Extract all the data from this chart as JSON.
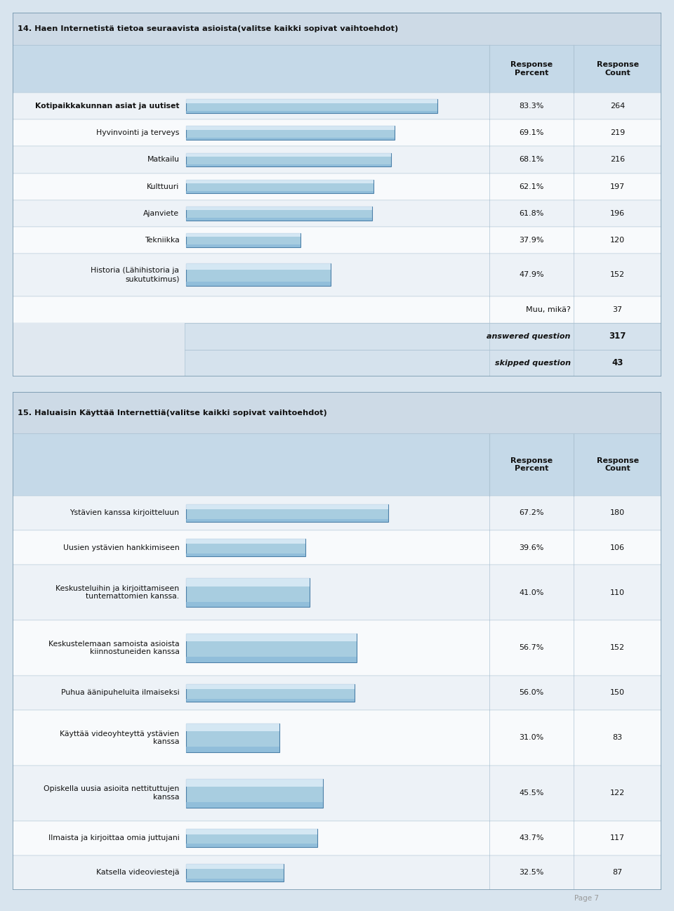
{
  "q14": {
    "title": "14. Haen Internetistä tietoa seuraavista asioista(valitse kaikki sopivat vaihtoehdot)",
    "categories": [
      "Kotipaikkakunnan asiat ja uutiset",
      "Hyvinvointi ja terveys",
      "Matkailu",
      "Kulttuuri",
      "Ajanviete",
      "Tekniikka",
      "Historia (Lähihistoria ja\nsukututkimus)"
    ],
    "bold_flags": [
      true,
      false,
      false,
      false,
      false,
      false,
      false
    ],
    "percents": [
      83.3,
      69.1,
      68.1,
      62.1,
      61.8,
      37.9,
      47.9
    ],
    "percent_labels": [
      "83.3%",
      "69.1%",
      "68.1%",
      "62.1%",
      "61.8%",
      "37.9%",
      "47.9%"
    ],
    "counts": [
      264,
      219,
      216,
      197,
      196,
      120,
      152
    ],
    "extra_row_label": "Muu, mikä?",
    "extra_row_count": 37,
    "answered_label": "answered question",
    "answered_count": 317,
    "skipped_label": "skipped question",
    "skipped_count": 43,
    "multi_line_row": [
      false,
      false,
      false,
      false,
      false,
      false,
      true
    ]
  },
  "q15": {
    "title": "15. Haluaisin Käyttää Internettiä(valitse kaikki sopivat vaihtoehdot)",
    "categories": [
      "Ystävien kanssa kirjoitteluun",
      "Uusien ystävien hankkimiseen",
      "Keskusteluihin ja kirjoittamiseen\ntuntemattomien kanssa.",
      "Keskustelemaan samoista asioista\nkiinnostuneiden kanssa",
      "Puhua äänipuheluita ilmaiseksi",
      "Käyttää videoyhteyttä ystävien\nkanssa",
      "Opiskella uusia asioita nettituttujen\nkanssa",
      "Ilmaista ja kirjoittaa omia juttujani",
      "Katsella videoviestejä"
    ],
    "bold_flags": [
      false,
      false,
      false,
      false,
      false,
      false,
      false,
      false,
      false
    ],
    "percents": [
      67.2,
      39.6,
      41.0,
      56.7,
      56.0,
      31.0,
      45.5,
      43.7,
      32.5
    ],
    "percent_labels": [
      "67.2%",
      "39.6%",
      "41.0%",
      "56.7%",
      "56.0%",
      "31.0%",
      "45.5%",
      "43.7%",
      "32.5%"
    ],
    "counts": [
      180,
      106,
      110,
      152,
      150,
      83,
      122,
      117,
      87
    ],
    "multi_line_row": [
      false,
      false,
      true,
      true,
      false,
      true,
      true,
      false,
      false
    ]
  },
  "bar_fill_top": "#daeaf6",
  "bar_fill_mid": "#a8cde0",
  "bar_fill_bot": "#88b8d8",
  "bar_edge_color": "#4a7fa8",
  "header_bg": "#c5d9e8",
  "row_bg_light": "#edf2f7",
  "row_bg_white": "#f8fafc",
  "title_bg": "#cddae6",
  "footer_bg": "#d5e2ed",
  "page_bg": "#d8e4ee",
  "sep_color": "#aec4d4",
  "page_label": "Page 7"
}
